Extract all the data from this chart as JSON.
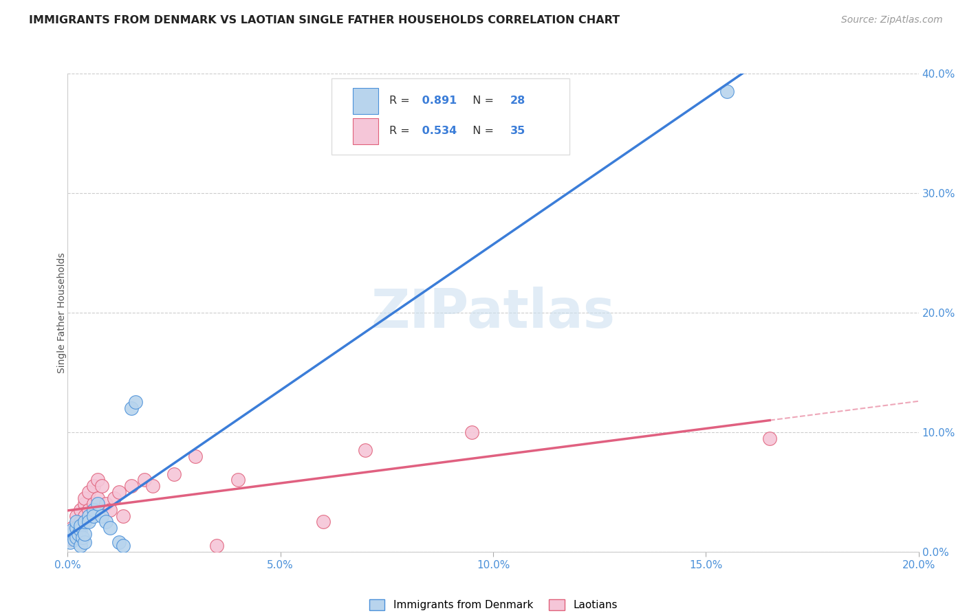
{
  "title": "IMMIGRANTS FROM DENMARK VS LAOTIAN SINGLE FATHER HOUSEHOLDS CORRELATION CHART",
  "source": "Source: ZipAtlas.com",
  "ylabel": "Single Father Households",
  "legend_label1": "Immigrants from Denmark",
  "legend_label2": "Laotians",
  "r1": 0.891,
  "n1": 28,
  "r2": 0.534,
  "n2": 35,
  "color1_fill": "#b8d4ed",
  "color1_edge": "#4a90d9",
  "color2_fill": "#f5c6d8",
  "color2_edge": "#e0607a",
  "color1_line": "#3b7dd8",
  "color2_line": "#e06080",
  "xlim": [
    0.0,
    0.2
  ],
  "ylim": [
    0.0,
    0.4
  ],
  "xticks": [
    0.0,
    0.05,
    0.1,
    0.15,
    0.2
  ],
  "yticks": [
    0.0,
    0.1,
    0.2,
    0.3,
    0.4
  ],
  "background": "#ffffff",
  "grid_color": "#cccccc",
  "watermark": "ZIPatlas",
  "denmark_x": [
    0.0005,
    0.001,
    0.001,
    0.0015,
    0.002,
    0.002,
    0.002,
    0.0025,
    0.003,
    0.003,
    0.003,
    0.0035,
    0.004,
    0.004,
    0.004,
    0.005,
    0.005,
    0.006,
    0.006,
    0.007,
    0.008,
    0.009,
    0.01,
    0.012,
    0.013,
    0.015,
    0.016,
    0.155
  ],
  "denmark_y": [
    0.008,
    0.015,
    0.018,
    0.01,
    0.012,
    0.02,
    0.025,
    0.015,
    0.005,
    0.018,
    0.022,
    0.012,
    0.008,
    0.015,
    0.025,
    0.03,
    0.025,
    0.035,
    0.03,
    0.04,
    0.03,
    0.025,
    0.02,
    0.008,
    0.005,
    0.12,
    0.125,
    0.385
  ],
  "laotian_x": [
    0.0005,
    0.0008,
    0.001,
    0.001,
    0.0015,
    0.002,
    0.002,
    0.003,
    0.003,
    0.004,
    0.004,
    0.004,
    0.005,
    0.005,
    0.006,
    0.006,
    0.007,
    0.007,
    0.008,
    0.009,
    0.01,
    0.011,
    0.012,
    0.013,
    0.015,
    0.018,
    0.02,
    0.025,
    0.03,
    0.035,
    0.04,
    0.06,
    0.07,
    0.095,
    0.165
  ],
  "laotian_y": [
    0.012,
    0.01,
    0.015,
    0.02,
    0.018,
    0.02,
    0.03,
    0.025,
    0.035,
    0.03,
    0.04,
    0.045,
    0.035,
    0.05,
    0.04,
    0.055,
    0.045,
    0.06,
    0.055,
    0.04,
    0.035,
    0.045,
    0.05,
    0.03,
    0.055,
    0.06,
    0.055,
    0.065,
    0.08,
    0.005,
    0.06,
    0.025,
    0.085,
    0.1,
    0.095
  ],
  "tick_color": "#4a90d9"
}
